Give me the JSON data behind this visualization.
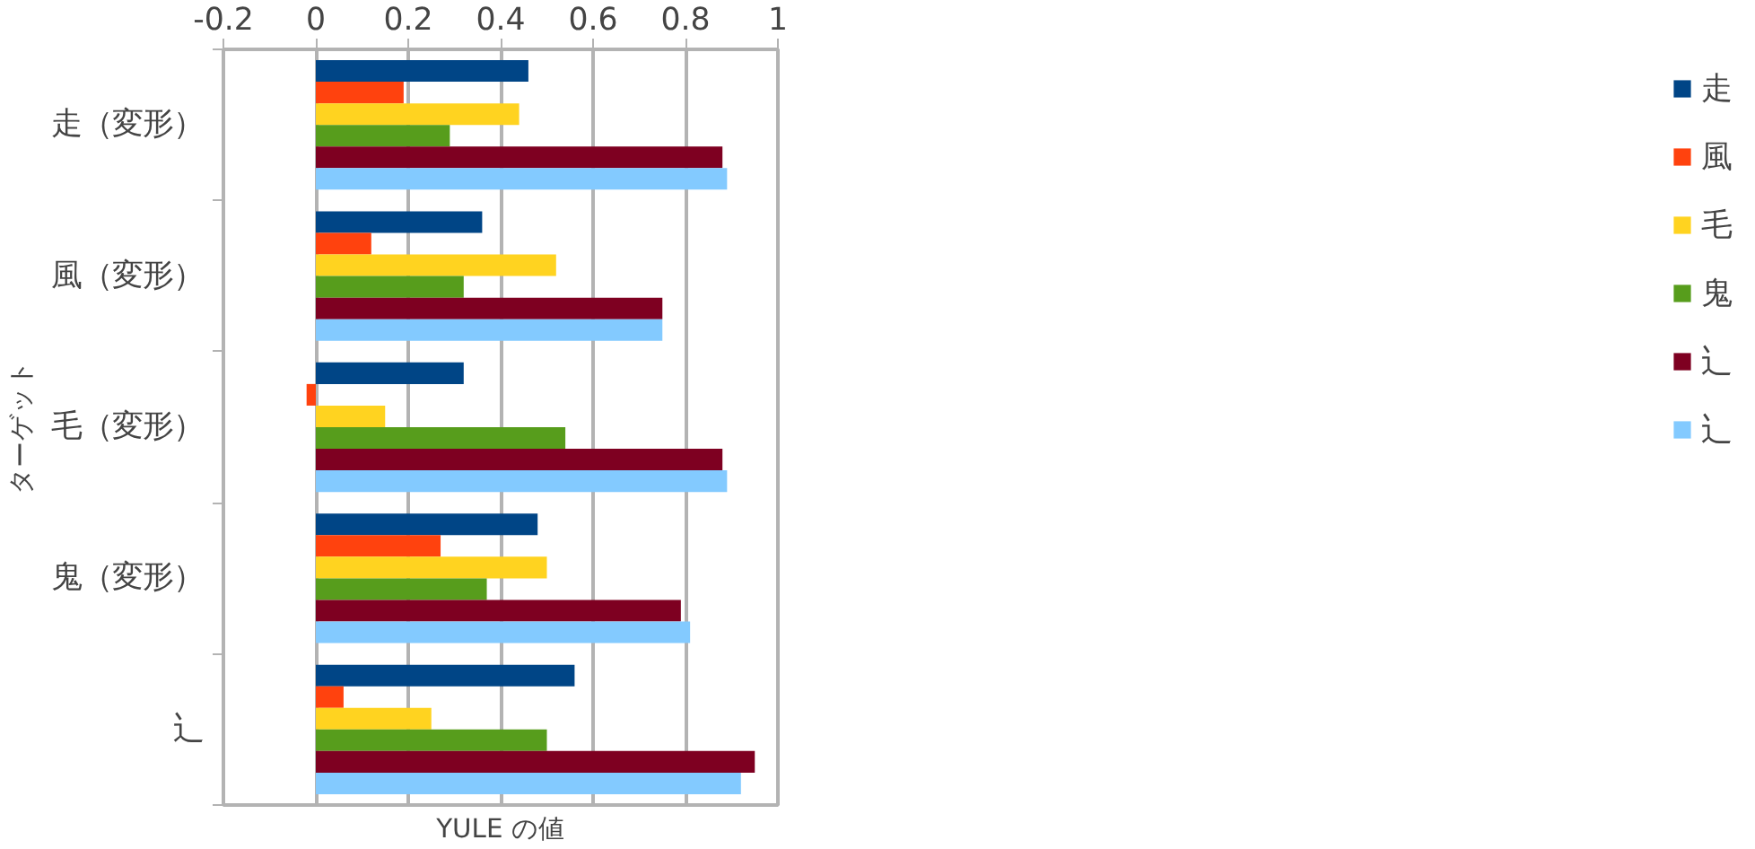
{
  "chart_data": {
    "type": "bar",
    "orientation": "horizontal",
    "xlabel": "YULE の値",
    "ylabel": "ターゲット",
    "categories": [
      "走（変形）",
      "風（変形）",
      "毛（変形）",
      "鬼（変形）",
      "辶"
    ],
    "series": [
      {
        "name": "走",
        "color": "#004586",
        "values": [
          0.46,
          0.36,
          0.32,
          0.48,
          0.56
        ]
      },
      {
        "name": "風",
        "color": "#ff420e",
        "values": [
          0.19,
          0.12,
          -0.02,
          0.27,
          0.06
        ]
      },
      {
        "name": "毛",
        "color": "#ffd320",
        "values": [
          0.44,
          0.52,
          0.15,
          0.5,
          0.25
        ]
      },
      {
        "name": "鬼",
        "color": "#579d1c",
        "values": [
          0.29,
          0.32,
          0.54,
          0.37,
          0.5
        ]
      },
      {
        "name": "辶",
        "color": "#7e0021",
        "values": [
          0.88,
          0.75,
          0.88,
          0.79,
          0.95
        ]
      },
      {
        "name": "辶",
        "color": "#83caff",
        "values": [
          0.89,
          0.75,
          0.89,
          0.81,
          0.92
        ]
      }
    ],
    "xlim": [
      -0.2,
      1
    ],
    "xticks": [
      -0.2,
      0,
      0.2,
      0.4,
      0.6,
      0.8,
      1
    ],
    "grid": "x",
    "legend": "right"
  }
}
